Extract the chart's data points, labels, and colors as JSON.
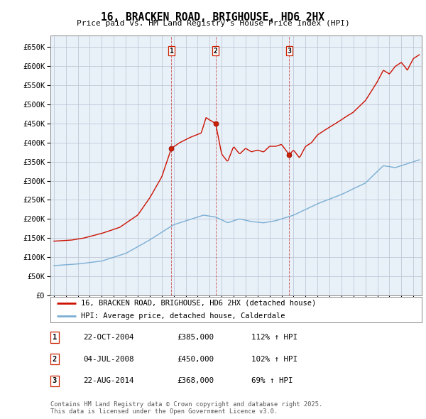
{
  "title": "16, BRACKEN ROAD, BRIGHOUSE, HD6 2HX",
  "subtitle": "Price paid vs. HM Land Registry's House Price Index (HPI)",
  "ylim": [
    0,
    680000
  ],
  "yticks": [
    0,
    50000,
    100000,
    150000,
    200000,
    250000,
    300000,
    350000,
    400000,
    450000,
    500000,
    550000,
    600000,
    650000
  ],
  "xlim_start": 1994.7,
  "xlim_end": 2025.7,
  "sale_dates": [
    2004.81,
    2008.5,
    2014.64
  ],
  "sale_prices": [
    385000,
    450000,
    368000
  ],
  "sale_labels": [
    "1",
    "2",
    "3"
  ],
  "legend_line1": "16, BRACKEN ROAD, BRIGHOUSE, HD6 2HX (detached house)",
  "legend_line2": "HPI: Average price, detached house, Calderdale",
  "table_rows": [
    [
      "1",
      "22-OCT-2004",
      "£385,000",
      "112% ↑ HPI"
    ],
    [
      "2",
      "04-JUL-2008",
      "£450,000",
      "102% ↑ HPI"
    ],
    [
      "3",
      "22-AUG-2014",
      "£368,000",
      "69% ↑ HPI"
    ]
  ],
  "footnote": "Contains HM Land Registry data © Crown copyright and database right 2025.\nThis data is licensed under the Open Government Licence v3.0.",
  "hpi_color": "#7bafd4",
  "sale_line_color": "#cc1100",
  "background_color": "#ffffff",
  "chart_bg_color": "#e8f0f8",
  "grid_color": "#c0c8d8"
}
